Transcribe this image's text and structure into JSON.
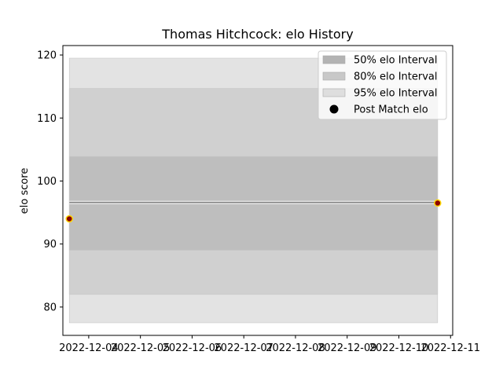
{
  "chart_data": {
    "type": "line",
    "title": "Thomas Hitchcock: elo History",
    "xlabel": "",
    "ylabel": "elo score",
    "x_tick_labels": [
      "2022-12-04",
      "2022-12-05",
      "2022-12-06",
      "2022-12-07",
      "2022-12-08",
      "2022-12-09",
      "2022-12-10",
      "2022-12-11"
    ],
    "x_range": [
      "2022-12-03T12:00",
      "2022-12-11T01:00"
    ],
    "ylim": [
      75.5,
      121.5
    ],
    "y_ticks": [
      80,
      90,
      100,
      110,
      120
    ],
    "grid": false,
    "legend_position": "top-right",
    "x": [
      "2022-12-03T15:00",
      "2022-12-10T18:00"
    ],
    "series": [
      {
        "name": "Post Match elo",
        "kind": "points",
        "values": [
          94.0,
          96.5
        ],
        "color": "#8b0000",
        "edge_color": "#ffd700"
      },
      {
        "name": "95% elo Interval",
        "kind": "band",
        "lower": 77.5,
        "upper": 119.5,
        "color": "#e3e3e3"
      },
      {
        "name": "80% elo Interval",
        "kind": "band",
        "lower": 82.0,
        "upper": 114.7,
        "color": "#d0d0d0"
      },
      {
        "name": "50% elo Interval",
        "kind": "band",
        "lower": 89.0,
        "upper": 103.9,
        "color": "#bebebe"
      }
    ],
    "mean_line": {
      "value": 96.6,
      "color": "#8c8c8c"
    },
    "legend": [
      {
        "label": "50% elo Interval",
        "kind": "patch",
        "color": "#b3b3b3"
      },
      {
        "label": "80% elo Interval",
        "kind": "patch",
        "color": "#c8c8c8"
      },
      {
        "label": "95% elo Interval",
        "kind": "patch",
        "color": "#dedede"
      },
      {
        "label": "Post Match elo",
        "kind": "marker",
        "color": "#000000"
      }
    ]
  }
}
